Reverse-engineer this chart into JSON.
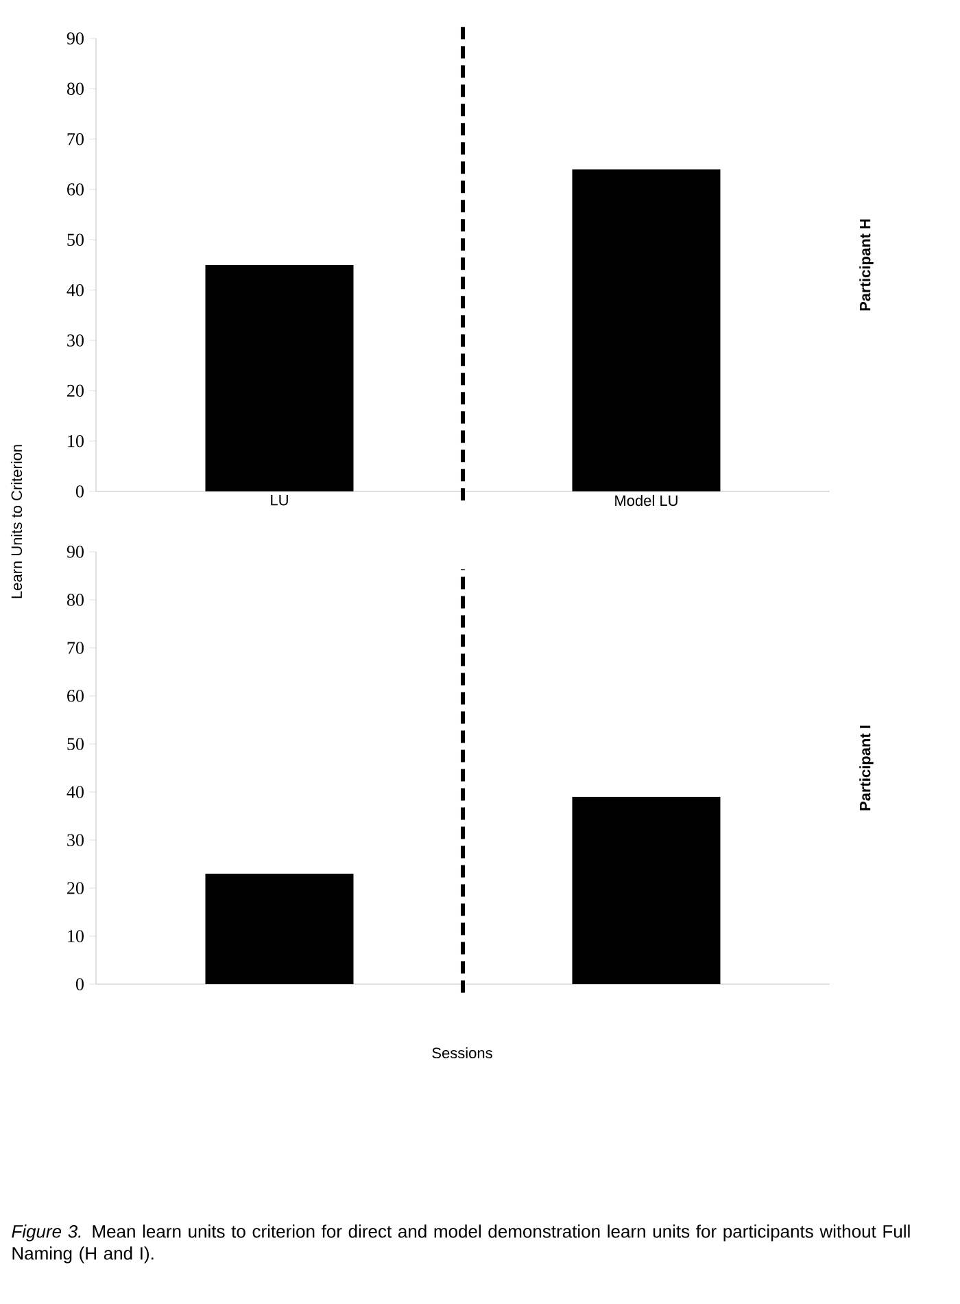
{
  "chart_data": [
    {
      "type": "bar",
      "categories": [
        "LU",
        "Model LU"
      ],
      "values": [
        45,
        64
      ],
      "color": "#000000",
      "ylabel": "Learn Units to Criterion",
      "ylim": [
        0,
        90
      ],
      "yticks": [
        0,
        10,
        20,
        30,
        40,
        50,
        60,
        70,
        80,
        90
      ],
      "annotations": [
        "Participant H"
      ]
    },
    {
      "type": "bar",
      "categories": [
        null,
        null
      ],
      "values": [
        23,
        39
      ],
      "color": "#000000",
      "xlabel": "Sessions",
      "ylim": [
        0,
        90
      ],
      "yticks": [
        0,
        10,
        20,
        30,
        40,
        50,
        60,
        70,
        80,
        90
      ],
      "annotations": [
        "Participant I",
        "*Figure 3.* Mean learn units to criterion for direct and model demonstration learn units for participants without Full Naming (H and I)."
      ]
    }
  ]
}
